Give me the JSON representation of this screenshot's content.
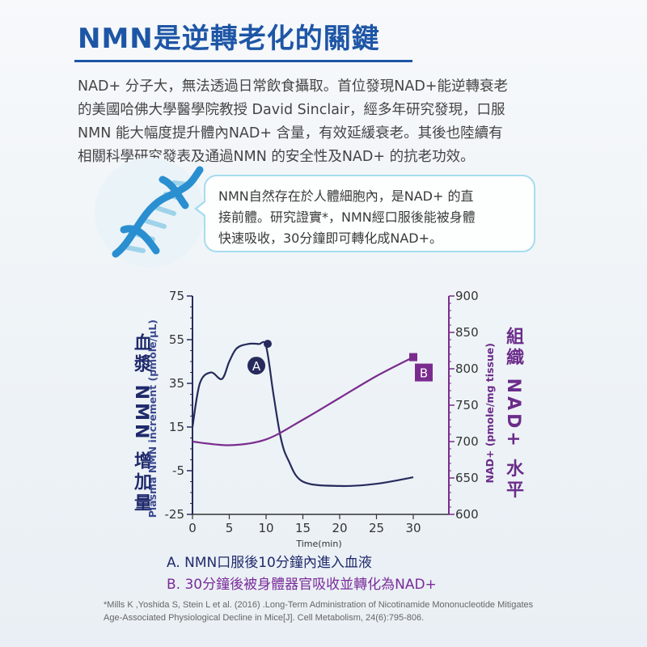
{
  "title": "NMN是逆轉老化的關鍵",
  "intro_lines": [
    "NAD+ 分子大，無法透過日常飲食攝取。首位發現NAD+能逆轉衰老",
    "的美國哈佛大學醫學院教授 David   Sinclair，經多年研究發現，口服",
    "NMN 能大幅度提升體內NAD+ 含量，有效延緩衰老。其後也陸續有",
    "相關科學研究發表及通過NMN 的安全性及NAD+ 的抗老功效。"
  ],
  "bubble_lines": [
    "NMN自然存在於人體細胞內，是NAD+ 的直",
    "接前體。研究證實*，NMN經口服後能被身體",
    "快速吸收，30分鐘即可轉化成NAD+。"
  ],
  "chart_data": {
    "type": "line",
    "xlabel": "Time(min)",
    "x_ticks": [
      0,
      5,
      10,
      15,
      20,
      25,
      30
    ],
    "left_axis": {
      "label_cn": "血漿 NMN 增加量",
      "label_en": "Plasma NMN increment (pmole/μL)",
      "ticks": [
        75,
        55,
        35,
        15,
        -5,
        -25
      ],
      "ylim": [
        -25,
        75
      ]
    },
    "right_axis": {
      "label_cn": "組織 NAD+ 水平",
      "label_en": "NAD+ (pmole/mg tissue)",
      "ticks": [
        900,
        850,
        800,
        750,
        700,
        650,
        600
      ],
      "ylim": [
        600,
        900
      ]
    },
    "series": [
      {
        "name": "A",
        "axis": "left",
        "color": "#262b5c",
        "x": [
          0,
          1,
          2.5,
          4,
          5,
          6,
          7.5,
          9,
          10,
          11,
          12,
          13,
          15,
          20,
          25,
          30
        ],
        "y": [
          15,
          35,
          40,
          37,
          45,
          51,
          53,
          53,
          52,
          30,
          10,
          0,
          -10,
          -12,
          -11,
          -8
        ]
      },
      {
        "name": "B",
        "axis": "right",
        "color": "#7a2c8e",
        "x": [
          0,
          5,
          10,
          15,
          20,
          25,
          30
        ],
        "y": [
          700,
          695,
          703,
          730,
          760,
          790,
          816
        ]
      }
    ],
    "markers": [
      {
        "series": "A",
        "label": "A",
        "x": 10,
        "y": 52
      },
      {
        "series": "B",
        "label": "B",
        "x": 30,
        "y": 816
      }
    ]
  },
  "caption_a": "A. NMN口服後10分鐘內進入血液",
  "caption_b": "B. 30分鐘後被身體器官吸收並轉化為NAD+",
  "reference_lines": [
    "*Mills K ,Yoshida S, Stein L et al. (2016) .Long-Term Administration of Nicotinamide Mononucleotide Mitigates",
    "Age-Associated Physiological Decline in Mice[J]. Cell Metabolism, 24(6):795-806."
  ],
  "colors": {
    "title": "#1e56a6",
    "left_axis": "#262b5c",
    "right_axis": "#7a2c8e",
    "bubble_border": "#a6dcee"
  }
}
